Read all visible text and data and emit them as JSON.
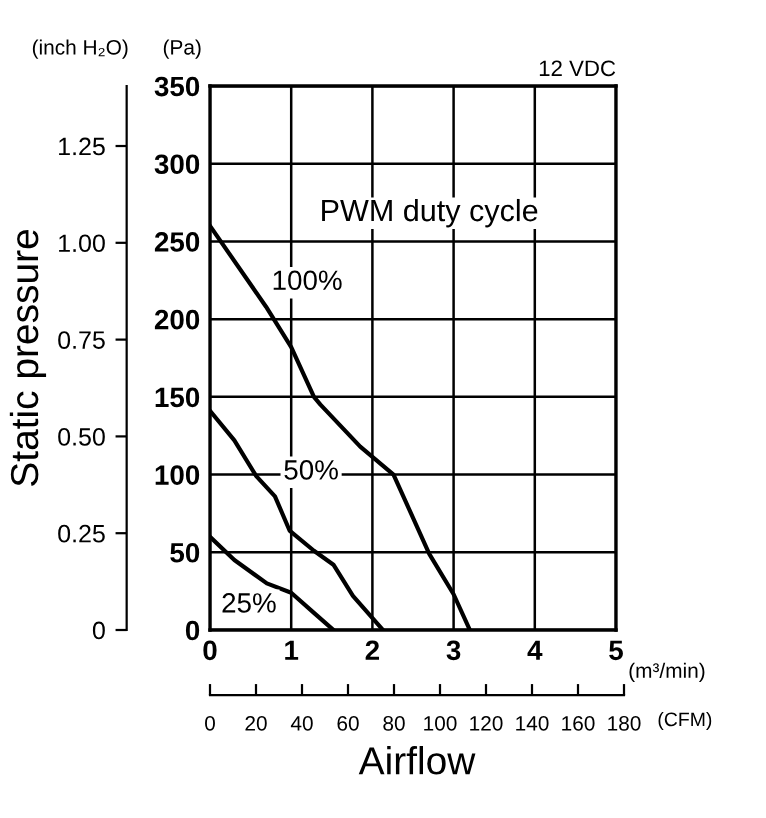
{
  "chart_data": {
    "type": "line",
    "xlabel": "Airflow",
    "y2label": "Static pressure",
    "x2label": "(CFM)",
    "annotations": [
      "(Pa)",
      "(m³/min)",
      "12 VDC",
      "PWM duty cycle",
      "(inch H₂O)"
    ],
    "xlim": [
      0,
      5
    ],
    "xticks": [
      0,
      1,
      2,
      3,
      4,
      5
    ],
    "ylim": [
      0,
      350
    ],
    "yticks": [
      0,
      50,
      100,
      150,
      200,
      250,
      300,
      350
    ],
    "y2lim": [
      0,
      1.405
    ],
    "y2ticks": [
      0,
      0.25,
      {
        "value": 0.5,
        "label": "0.50"
      },
      0.75,
      {
        "value": 1.0,
        "label": "1.00"
      },
      1.25
    ],
    "x2lim": [
      0,
      180
    ],
    "x2ticks": [
      0,
      20,
      40,
      60,
      80,
      100,
      120,
      140,
      160,
      180
    ],
    "grid": true,
    "legend": false,
    "line_style": "solid",
    "marker": "none",
    "series": [
      {
        "name": "100%",
        "color": "#000000",
        "x": [
          0,
          0.69,
          1.0,
          1.28,
          1.36,
          1.85,
          2.26,
          2.7,
          3.0,
          3.2
        ],
        "values": [
          260,
          208,
          182,
          150,
          145,
          118,
          100,
          49,
          23,
          0
        ]
      },
      {
        "name": "50%",
        "color": "#000000",
        "x": [
          0,
          0.3,
          0.57,
          0.8,
          0.98,
          1.28,
          1.52,
          1.76,
          2.13
        ],
        "values": [
          141,
          122,
          99,
          86,
          64,
          51,
          42,
          22,
          0
        ]
      },
      {
        "name": "25%",
        "color": "#000000",
        "x": [
          0,
          0.3,
          0.7,
          1.0,
          1.28,
          1.52
        ],
        "values": [
          60,
          45,
          30,
          24,
          11,
          0
        ]
      }
    ]
  }
}
